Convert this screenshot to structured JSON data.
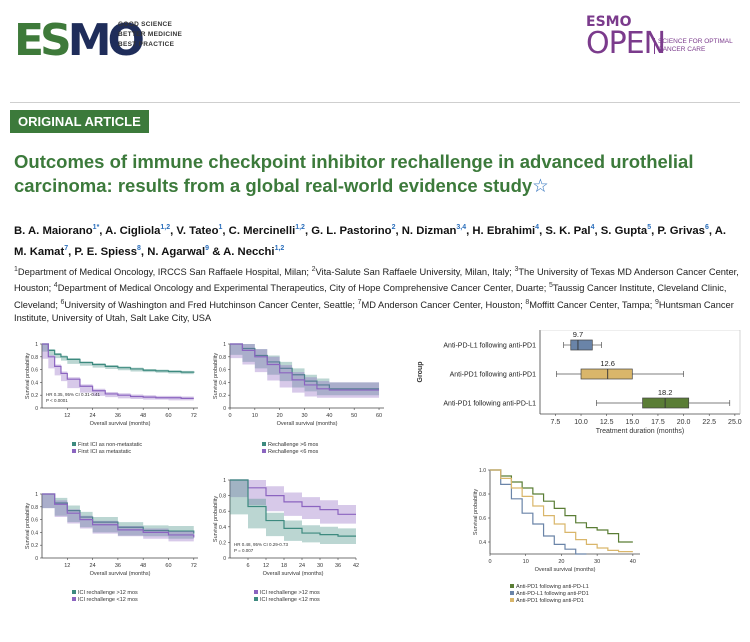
{
  "header": {
    "esmo_logo": "ESMO",
    "tagline": [
      "GOOD SCIENCE",
      "BETTER MEDICINE",
      "BEST PRACTICE"
    ],
    "journal_top": "ESMO",
    "journal_name": "OPEN",
    "journal_sub": [
      "SCIENCE FOR OPTIMAL",
      "CANCER CARE"
    ]
  },
  "article": {
    "badge": "ORIGINAL ARTICLE",
    "title": "Outcomes of immune checkpoint inhibitor rechallenge in advanced urothelial carcinoma: results from a global real-world evidence study",
    "title_star": "☆",
    "authors": [
      {
        "name": "B. A. Maiorano",
        "sup": "1*"
      },
      {
        "name": "A. Cigliola",
        "sup": "1,2"
      },
      {
        "name": "V. Tateo",
        "sup": "1"
      },
      {
        "name": "C. Mercinelli",
        "sup": "1,2"
      },
      {
        "name": "G. L. Pastorino",
        "sup": "2"
      },
      {
        "name": "N. Dizman",
        "sup": "3,4"
      },
      {
        "name": "H. Ebrahimi",
        "sup": "4"
      },
      {
        "name": "S. K. Pal",
        "sup": "4"
      },
      {
        "name": "S. Gupta",
        "sup": "5"
      },
      {
        "name": "P. Grivas",
        "sup": "6"
      },
      {
        "name": "A. M. Kamat",
        "sup": "7"
      },
      {
        "name": "P. E. Spiess",
        "sup": "8"
      },
      {
        "name": "N. Agarwal",
        "sup": "9"
      },
      {
        "name": "A. Necchi",
        "sup": "1,2"
      }
    ],
    "affiliations": [
      {
        "n": "1",
        "text": "Department of Medical Oncology, IRCCS San Raffaele Hospital, Milan; "
      },
      {
        "n": "2",
        "text": "Vita-Salute San Raffaele University, Milan, Italy; "
      },
      {
        "n": "3",
        "text": "The University of Texas MD Anderson Cancer Center, Houston; "
      },
      {
        "n": "4",
        "text": "Department of Medical Oncology and Experimental Therapeutics, City of Hope Comprehensive Cancer Center, Duarte; "
      },
      {
        "n": "5",
        "text": "Taussig Cancer Institute, Cleveland Clinic, Cleveland; "
      },
      {
        "n": "6",
        "text": "University of Washington and Fred Hutchinson Cancer Center, Seattle; "
      },
      {
        "n": "7",
        "text": "MD Anderson Cancer Center, Houston; "
      },
      {
        "n": "8",
        "text": "Moffitt Cancer Center, Tampa; "
      },
      {
        "n": "9",
        "text": "Huntsman Cancer Institute, University of Utah, Salt Lake City, USA"
      }
    ]
  },
  "chart_data": [
    {
      "type": "line",
      "title": "",
      "xlabel": "Overall survival (months)",
      "ylabel": "Survival probability",
      "xticks": [
        "12",
        "24",
        "36",
        "48",
        "60",
        "72"
      ],
      "yticks": [
        "0",
        "0.2",
        "0.4",
        "0.6",
        "0.8",
        "1"
      ],
      "annotation": [
        "HR 0.35, 95% CI 0.31-0.41",
        "P < 0.0001"
      ],
      "series": [
        {
          "name": "First ICI as non-metastatic",
          "color": "#3d8a7f",
          "x": [
            0,
            3,
            6,
            9,
            12,
            18,
            24,
            30,
            36,
            42,
            48,
            54,
            60,
            66,
            72
          ],
          "y": [
            1,
            0.9,
            0.84,
            0.8,
            0.76,
            0.71,
            0.68,
            0.65,
            0.63,
            0.61,
            0.59,
            0.58,
            0.57,
            0.56,
            0.55
          ]
        },
        {
          "name": "First ICI as metastatic",
          "color": "#8b64c0",
          "x": [
            0,
            3,
            6,
            9,
            12,
            18,
            24,
            30,
            36,
            42,
            48,
            54,
            60,
            66,
            72
          ],
          "y": [
            1,
            0.8,
            0.65,
            0.54,
            0.45,
            0.34,
            0.27,
            0.22,
            0.2,
            0.18,
            0.17,
            0.16,
            0.16,
            0.15,
            0.15
          ]
        }
      ]
    },
    {
      "type": "line",
      "title": "",
      "xlabel": "Overall survival (months)",
      "ylabel": "Survival probability",
      "xticks": [
        "0",
        "10",
        "20",
        "30",
        "40",
        "50",
        "60"
      ],
      "yticks": [
        "0",
        "0.2",
        "0.4",
        "0.6",
        "0.8",
        "1"
      ],
      "series": [
        {
          "name": "Rechallenge >6 mos",
          "color": "#3d8a7f",
          "x": [
            0,
            5,
            10,
            15,
            20,
            25,
            30,
            35,
            40,
            60
          ],
          "y": [
            1,
            0.93,
            0.82,
            0.72,
            0.62,
            0.52,
            0.42,
            0.36,
            0.3,
            0.3
          ]
        },
        {
          "name": "Rechallenge <6 mos",
          "color": "#8b64c0",
          "x": [
            0,
            5,
            10,
            15,
            20,
            25,
            30,
            35,
            40,
            60
          ],
          "y": [
            1,
            0.9,
            0.8,
            0.68,
            0.55,
            0.44,
            0.36,
            0.3,
            0.28,
            0.28
          ]
        }
      ]
    },
    {
      "type": "bar",
      "title": "",
      "xlabel": "Treatment duration (months)",
      "ylabel": "Group",
      "xticks": [
        "7.5",
        "10.0",
        "12.5",
        "15.0",
        "17.5",
        "20.0",
        "22.5",
        "25.0"
      ],
      "xlim": [
        6,
        25.5
      ],
      "groups": [
        {
          "name": "Anti-PD-L1 following anti-PD1",
          "median": 9.7,
          "q1": 9.0,
          "q3": 11.1,
          "min": 8.3,
          "max": 12.0,
          "color": "#6a84a8"
        },
        {
          "name": "Anti-PD1 following anti-PD1",
          "median": 12.6,
          "q1": 10.0,
          "q3": 15.0,
          "min": 7.6,
          "max": 20.0,
          "color": "#d9b66a"
        },
        {
          "name": "Anti-PD1 following anti-PD-L1",
          "median": 18.2,
          "q1": 16.0,
          "q3": 20.5,
          "min": 11.5,
          "max": 24.5,
          "color": "#5a7d35"
        }
      ],
      "labels": [
        "9.7",
        "12.6",
        "18.2"
      ]
    },
    {
      "type": "line",
      "title": "",
      "xlabel": "Overall survival (months)",
      "ylabel": "Survival probability",
      "xticks": [
        "12",
        "24",
        "36",
        "48",
        "60",
        "72"
      ],
      "yticks": [
        "0",
        "0.2",
        "0.4",
        "0.6",
        "0.8",
        "1"
      ],
      "series": [
        {
          "name": "ICI rechallenge >12 mos",
          "color": "#3d8a7f",
          "x": [
            0,
            6,
            12,
            18,
            24,
            36,
            48,
            60,
            72
          ],
          "y": [
            1,
            0.86,
            0.74,
            0.64,
            0.56,
            0.48,
            0.43,
            0.42,
            0.38
          ]
        },
        {
          "name": "ICI rechallenge <12 mos",
          "color": "#8b64c0",
          "x": [
            0,
            6,
            12,
            18,
            24,
            36,
            48,
            60,
            72
          ],
          "y": [
            1,
            0.84,
            0.7,
            0.6,
            0.52,
            0.44,
            0.4,
            0.36,
            0.32
          ]
        }
      ]
    },
    {
      "type": "line",
      "title": "",
      "xlabel": "Overall survival (months)",
      "ylabel": "Survival probability",
      "xticks": [
        "6",
        "12",
        "18",
        "24",
        "30",
        "36",
        "42"
      ],
      "yticks": [
        "0",
        "0.2",
        "0.4",
        "0.6",
        "0.8",
        "1"
      ],
      "annotation": [
        "HR 0.48, 95% CI 0.29-0.73",
        "P = 0.007"
      ],
      "series": [
        {
          "name": "ICI rechallenge >12 mos",
          "color": "#8b64c0",
          "x": [
            0,
            6,
            12,
            18,
            24,
            30,
            36,
            42
          ],
          "y": [
            1,
            0.9,
            0.8,
            0.72,
            0.66,
            0.62,
            0.56,
            0.56
          ]
        },
        {
          "name": "ICI rechallenge <12 mos",
          "color": "#3d8a7f",
          "x": [
            0,
            6,
            12,
            18,
            24,
            30,
            36,
            42
          ],
          "y": [
            1,
            0.66,
            0.48,
            0.38,
            0.32,
            0.3,
            0.28,
            0.28
          ]
        }
      ]
    },
    {
      "type": "line",
      "title": "",
      "xlabel": "Overall survival (months)",
      "ylabel": "Survival probability",
      "xticks": [
        "0",
        "10",
        "20",
        "30",
        "40"
      ],
      "yticks": [
        "0.4",
        "0.6",
        "0.8",
        "1.0"
      ],
      "series": [
        {
          "name": "Anti-PD1 following anti-PD-L1",
          "color": "#5a7d35",
          "x": [
            0,
            3,
            6,
            9,
            12,
            15,
            18,
            21,
            24,
            27,
            30,
            33,
            36,
            40
          ],
          "y": [
            1,
            0.95,
            0.9,
            0.85,
            0.8,
            0.74,
            0.68,
            0.62,
            0.56,
            0.52,
            0.5,
            0.47,
            0.4,
            0.4
          ]
        },
        {
          "name": "Anti-PD-L1 following anti-PD1",
          "color": "#6a84a8",
          "x": [
            0,
            3,
            6,
            9,
            12,
            15,
            18,
            21,
            24,
            27
          ],
          "y": [
            1,
            0.88,
            0.76,
            0.64,
            0.55,
            0.45,
            0.38,
            0.34,
            0.3,
            0.3
          ]
        },
        {
          "name": "Anti-PD1 following anti-PD1",
          "color": "#d9b66a",
          "x": [
            0,
            3,
            6,
            9,
            12,
            15,
            18,
            21,
            24,
            27,
            30,
            33,
            36,
            40
          ],
          "y": [
            1,
            0.93,
            0.85,
            0.78,
            0.7,
            0.62,
            0.55,
            0.48,
            0.42,
            0.38,
            0.35,
            0.33,
            0.32,
            0.32
          ]
        }
      ]
    }
  ]
}
